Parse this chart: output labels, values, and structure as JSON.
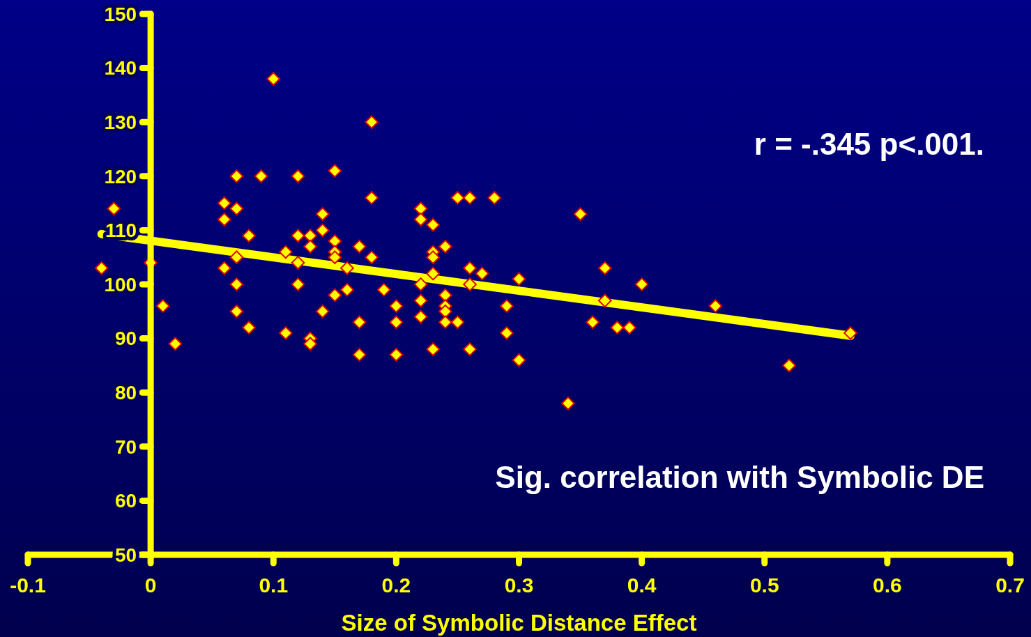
{
  "chart_data": {
    "type": "scatter",
    "xlabel": "Size of Symbolic Distance Effect",
    "annotations": [
      "r = -.345 p<.001.",
      "Sig. correlation with Symbolic DE"
    ],
    "xlim": [
      -0.1,
      0.7
    ],
    "xticks": [
      -0.1,
      0,
      0.1,
      0.2,
      0.3,
      0.4,
      0.5,
      0.6,
      0.7
    ],
    "ylim": [
      50,
      150
    ],
    "yticks": [
      50,
      60,
      70,
      80,
      90,
      100,
      110,
      120,
      130,
      140,
      150
    ],
    "grid": false,
    "marker": "diamond",
    "series": [
      {
        "color": "#ffff00",
        "x": [
          -0.04,
          -0.03,
          0,
          0.01,
          0.02,
          0.06,
          0.06,
          0.06,
          0.07,
          0.07,
          0.07,
          0.07,
          0.07,
          0.08,
          0.08,
          0.09,
          0.1,
          0.11,
          0.11,
          0.12,
          0.12,
          0.12,
          0.12,
          0.13,
          0.13,
          0.13,
          0.13,
          0.14,
          0.14,
          0.14,
          0.15,
          0.15,
          0.15,
          0.15,
          0.15,
          0.16,
          0.16,
          0.17,
          0.17,
          0.17,
          0.18,
          0.18,
          0.18,
          0.19,
          0.2,
          0.2,
          0.2,
          0.22,
          0.22,
          0.22,
          0.22,
          0.22,
          0.23,
          0.23,
          0.23,
          0.23,
          0.23,
          0.24,
          0.24,
          0.24,
          0.24,
          0.24,
          0.25,
          0.25,
          0.26,
          0.26,
          0.26,
          0.26,
          0.27,
          0.28,
          0.29,
          0.29,
          0.3,
          0.3,
          0.34,
          0.35,
          0.36,
          0.37,
          0.37,
          0.38,
          0.39,
          0.4,
          0.46,
          0.52,
          0.57
        ],
        "values": [
          103,
          114,
          104,
          96,
          89,
          115,
          112,
          103,
          120,
          114,
          105,
          100,
          95,
          109,
          92,
          120,
          138,
          106,
          91,
          120,
          109,
          104,
          100,
          109,
          107,
          90,
          89,
          113,
          110,
          95,
          121,
          108,
          106,
          105,
          98,
          103,
          99,
          107,
          93,
          87,
          130,
          116,
          105,
          99,
          96,
          93,
          87,
          114,
          112,
          100,
          97,
          94,
          111,
          106,
          105,
          102,
          88,
          107,
          98,
          96,
          95,
          93,
          116,
          93,
          116,
          103,
          100,
          88,
          102,
          116,
          96,
          91,
          101,
          86,
          78,
          113,
          93,
          103,
          97,
          92,
          92,
          100,
          96,
          85,
          91
        ]
      },
      {
        "type": "line",
        "color": "#ffff00",
        "marker": "none",
        "x": [
          -0.04,
          0.57
        ],
        "values": [
          109.3,
          90.5
        ]
      }
    ]
  }
}
